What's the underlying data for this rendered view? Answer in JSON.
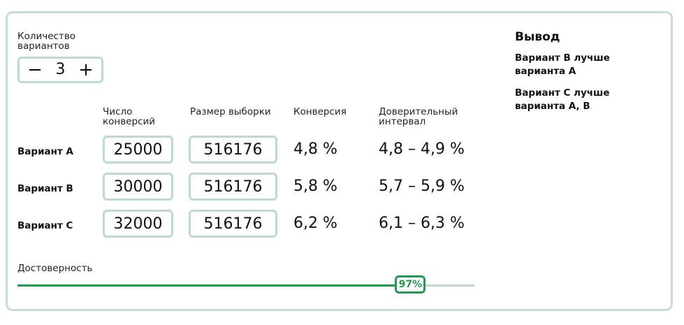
{
  "variants_count": {
    "label": "Количество вариантов",
    "value": "3",
    "minus": "−",
    "plus": "+"
  },
  "table": {
    "headers": {
      "conversions": "Число конверсий",
      "sample": "Размер выборки",
      "conversion": "Конверсия",
      "interval": "Доверительный интервал"
    },
    "rows": [
      {
        "label": "Вариант A",
        "conversions": "25000",
        "sample": "516176",
        "conversion": "4,8 %",
        "interval": "4,8 – 4,9 %"
      },
      {
        "label": "Вариант B",
        "conversions": "30000",
        "sample": "516176",
        "conversion": "5,8 %",
        "interval": "5,7 – 5,9 %"
      },
      {
        "label": "Вариант C",
        "conversions": "32000",
        "sample": "516176",
        "conversion": "6,2 %",
        "interval": "6,1 – 6,3 %"
      }
    ]
  },
  "confidence": {
    "label": "Достоверность",
    "value_label": "97%",
    "fraction": 0.86
  },
  "conclusion": {
    "title": "Вывод",
    "lines": [
      "Вариант B лучше варианта A",
      "Вариант C лучше варианта A, B"
    ]
  },
  "colors": {
    "accent": "#1f9a4e",
    "border": "#bcd9d3"
  }
}
